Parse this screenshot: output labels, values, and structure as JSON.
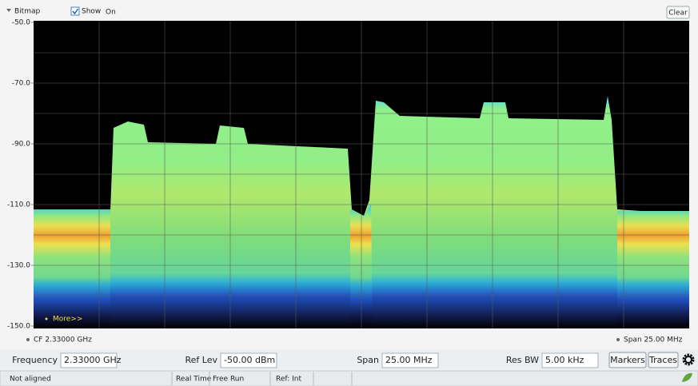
{
  "toolbar": {
    "title": "Bitmap",
    "show_label": "Show",
    "show_state": "On",
    "clear_button": "Clear"
  },
  "plot": {
    "ylim": [
      -150,
      -50
    ],
    "yticks": [
      {
        "value": -50,
        "label": "-50.0"
      },
      {
        "value": -70,
        "label": "-70.0"
      },
      {
        "value": -90,
        "label": "-90.0"
      },
      {
        "value": -110,
        "label": "-110.0"
      },
      {
        "value": -130,
        "label": "-130.0"
      },
      {
        "value": -150,
        "label": "-150.0"
      }
    ],
    "more_link": "More>>",
    "cf_label": "CF  2.33000 GHz",
    "span_label": "Span  25.00 MHz"
  },
  "settings": [
    {
      "label": "Frequency",
      "value": "2.33000 GHz"
    },
    {
      "label": "Ref Lev",
      "value": "-50.00 dBm"
    },
    {
      "label": "Span",
      "value": "25.00 MHz"
    },
    {
      "label": "Res BW",
      "value": "5.00 kHz"
    }
  ],
  "buttons": [
    "Markers",
    "Traces"
  ],
  "status": [
    "Not aligned",
    "Real Time",
    "Free Run",
    "Ref: Int"
  ]
}
